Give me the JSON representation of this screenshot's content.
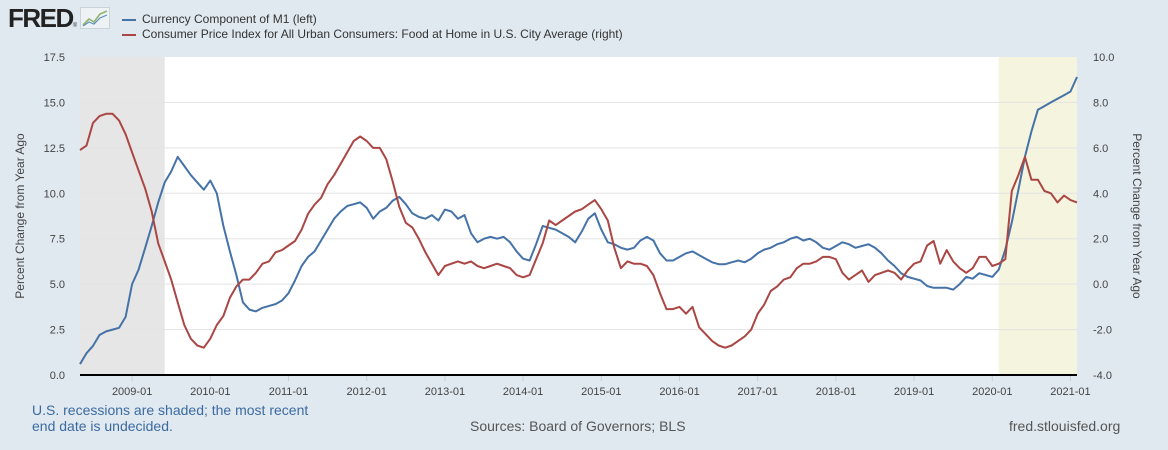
{
  "brand": {
    "logo_text": "FRED",
    "logo_icon": "line-chart-icon"
  },
  "colors": {
    "currency_line": "#4572a7",
    "cpi_line": "#aa4643",
    "recession_shade_1": "#e6e6e6",
    "recession_shade_2": "#f5f4de",
    "background": "#e1e9f0"
  },
  "footer": {
    "recession_note": "U.S. recessions are shaded; the most recent end date is undecided.",
    "sources": "Sources: Board of Governors; BLS",
    "site": "fred.stlouisfed.org"
  },
  "chart_data": {
    "type": "line",
    "title": "",
    "xlabel": "",
    "ylabel": "Percent Change from Year Ago",
    "ylabel_right": "Percent Change from Year Ago",
    "ylim": [
      0,
      17.5
    ],
    "ylim_right": [
      -4,
      10
    ],
    "yticks": [
      "0.0",
      "2.5",
      "5.0",
      "7.5",
      "10.0",
      "12.5",
      "15.0",
      "17.5"
    ],
    "yticks_right": [
      "-4.0",
      "-2.0",
      "0.0",
      "2.0",
      "4.0",
      "6.0",
      "8.0",
      "10.0"
    ],
    "xticks": [
      "2009-01",
      "2010-01",
      "2011-01",
      "2012-01",
      "2013-01",
      "2014-01",
      "2015-01",
      "2016-01",
      "2017-01",
      "2018-01",
      "2019-01",
      "2020-01",
      "2021-01"
    ],
    "x_start": "2008-05",
    "x_end": "2021-02",
    "frequency": "monthly",
    "grid": true,
    "legend_position": "top-left",
    "recessions": [
      {
        "start": "2008-05",
        "end": "2009-06"
      },
      {
        "start": "2020-02",
        "end": "2021-02"
      }
    ],
    "series": [
      {
        "name": "Currency Component of M1 (left)",
        "axis": "left",
        "values": [
          0.6,
          1.2,
          1.6,
          2.2,
          2.4,
          2.5,
          2.6,
          3.2,
          5.0,
          5.8,
          7.0,
          8.2,
          9.5,
          10.6,
          11.2,
          12.0,
          11.5,
          11.0,
          10.6,
          10.2,
          10.7,
          10.0,
          8.2,
          6.8,
          5.5,
          4.0,
          3.6,
          3.5,
          3.7,
          3.8,
          3.9,
          4.1,
          4.5,
          5.2,
          6.0,
          6.5,
          6.8,
          7.4,
          8.0,
          8.6,
          9.0,
          9.3,
          9.4,
          9.5,
          9.2,
          8.6,
          9.0,
          9.2,
          9.6,
          9.8,
          9.4,
          8.9,
          8.7,
          8.6,
          8.8,
          8.5,
          9.1,
          9.0,
          8.6,
          8.8,
          7.8,
          7.3,
          7.5,
          7.6,
          7.5,
          7.6,
          7.3,
          6.8,
          6.4,
          6.3,
          7.2,
          8.2,
          8.1,
          8.0,
          7.8,
          7.6,
          7.3,
          7.9,
          8.6,
          8.9,
          8.0,
          7.3,
          7.2,
          7.0,
          6.9,
          7.0,
          7.4,
          7.6,
          7.4,
          6.7,
          6.3,
          6.3,
          6.5,
          6.7,
          6.8,
          6.6,
          6.4,
          6.2,
          6.1,
          6.1,
          6.2,
          6.3,
          6.2,
          6.4,
          6.7,
          6.9,
          7.0,
          7.2,
          7.3,
          7.5,
          7.6,
          7.4,
          7.5,
          7.3,
          7.0,
          6.9,
          7.1,
          7.3,
          7.2,
          7.0,
          7.1,
          7.2,
          7.0,
          6.7,
          6.3,
          6.0,
          5.6,
          5.4,
          5.3,
          5.2,
          4.9,
          4.8,
          4.8,
          4.8,
          4.7,
          5.0,
          5.4,
          5.3,
          5.6,
          5.5,
          5.4,
          5.8,
          6.9,
          8.4,
          10.2,
          12.0,
          13.4,
          14.6,
          14.8,
          15.0,
          15.2,
          15.4,
          15.6,
          16.4
        ]
      },
      {
        "name": "Consumer Price Index for All Urban Consumers: Food at Home in U.S. City Average (right)",
        "axis": "right",
        "values": [
          5.9,
          6.1,
          7.1,
          7.4,
          7.5,
          7.5,
          7.2,
          6.6,
          5.8,
          5.0,
          4.2,
          3.2,
          1.8,
          1.0,
          0.2,
          -0.8,
          -1.8,
          -2.4,
          -2.7,
          -2.8,
          -2.4,
          -1.8,
          -1.4,
          -0.6,
          -0.1,
          0.2,
          0.2,
          0.5,
          0.9,
          1.0,
          1.4,
          1.5,
          1.7,
          1.9,
          2.4,
          3.1,
          3.5,
          3.8,
          4.4,
          4.8,
          5.3,
          5.8,
          6.3,
          6.5,
          6.3,
          6.0,
          6.0,
          5.5,
          4.5,
          3.4,
          2.7,
          2.5,
          2.0,
          1.4,
          0.9,
          0.4,
          0.8,
          0.9,
          1.0,
          0.9,
          1.0,
          0.8,
          0.7,
          0.8,
          0.9,
          0.8,
          0.7,
          0.4,
          0.3,
          0.4,
          1.1,
          1.8,
          2.8,
          2.6,
          2.8,
          3.0,
          3.2,
          3.3,
          3.5,
          3.7,
          3.3,
          2.8,
          1.6,
          0.7,
          1.0,
          0.9,
          0.9,
          0.8,
          0.4,
          -0.4,
          -1.1,
          -1.1,
          -1.0,
          -1.3,
          -1.0,
          -1.9,
          -2.2,
          -2.5,
          -2.7,
          -2.8,
          -2.7,
          -2.5,
          -2.3,
          -2.0,
          -1.3,
          -0.9,
          -0.3,
          -0.1,
          0.2,
          0.3,
          0.7,
          0.9,
          0.9,
          1.0,
          1.2,
          1.2,
          1.1,
          0.5,
          0.2,
          0.4,
          0.6,
          0.1,
          0.4,
          0.5,
          0.6,
          0.5,
          0.2,
          0.6,
          0.9,
          1.0,
          1.7,
          1.9,
          0.9,
          1.5,
          1.0,
          0.7,
          0.5,
          0.7,
          1.2,
          1.2,
          0.8,
          0.9,
          1.1,
          4.1,
          4.8,
          5.6,
          4.6,
          4.6,
          4.1,
          4.0,
          3.6,
          3.9,
          3.7,
          3.6
        ]
      }
    ]
  }
}
